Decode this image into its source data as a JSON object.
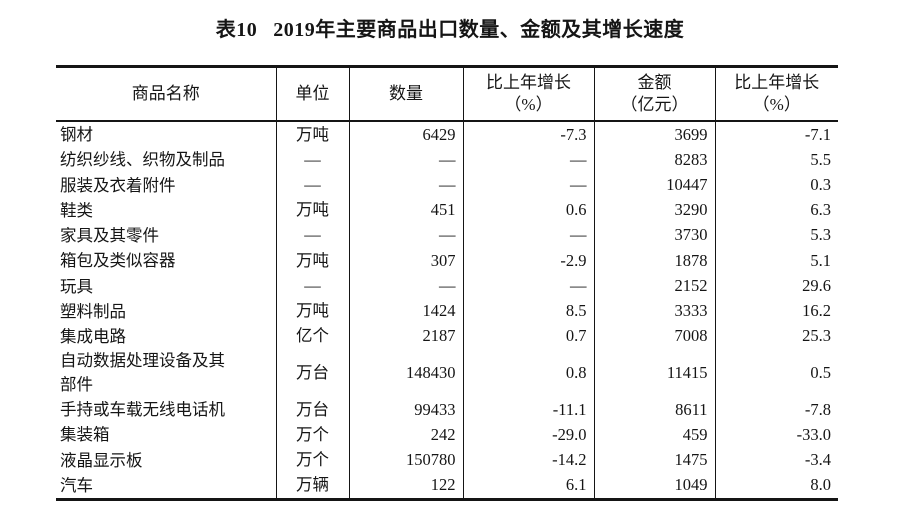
{
  "title": {
    "label": "表10",
    "text": "2019年主要商品出口数量、金额及其增长速度"
  },
  "table": {
    "headers": [
      "商品名称",
      "单位",
      "数量",
      "比上年增长\n（%）",
      "金额\n（亿元）",
      "比上年增长\n（%）"
    ],
    "rows": [
      {
        "name": "钢材",
        "unit": "万吨",
        "qty": "6429",
        "qtyGrowth": "-7.3",
        "amount": "3699",
        "amountGrowth": "-7.1"
      },
      {
        "name": "纺织纱线、织物及制品",
        "unit": "—",
        "qty": "—",
        "qtyGrowth": "—",
        "amount": "8283",
        "amountGrowth": "5.5"
      },
      {
        "name": "服装及衣着附件",
        "unit": "—",
        "qty": "—",
        "qtyGrowth": "—",
        "amount": "10447",
        "amountGrowth": "0.3"
      },
      {
        "name": "鞋类",
        "unit": "万吨",
        "qty": "451",
        "qtyGrowth": "0.6",
        "amount": "3290",
        "amountGrowth": "6.3"
      },
      {
        "name": "家具及其零件",
        "unit": "—",
        "qty": "—",
        "qtyGrowth": "—",
        "amount": "3730",
        "amountGrowth": "5.3"
      },
      {
        "name": "箱包及类似容器",
        "unit": "万吨",
        "qty": "307",
        "qtyGrowth": "-2.9",
        "amount": "1878",
        "amountGrowth": "5.1"
      },
      {
        "name": "玩具",
        "unit": "—",
        "qty": "—",
        "qtyGrowth": "—",
        "amount": "2152",
        "amountGrowth": "29.6"
      },
      {
        "name": "塑料制品",
        "unit": "万吨",
        "qty": "1424",
        "qtyGrowth": "8.5",
        "amount": "3333",
        "amountGrowth": "16.2"
      },
      {
        "name": "集成电路",
        "unit": "亿个",
        "qty": "2187",
        "qtyGrowth": "0.7",
        "amount": "7008",
        "amountGrowth": "25.3"
      },
      {
        "name": "自动数据处理设备及其部件",
        "unit": "万台",
        "qty": "148430",
        "qtyGrowth": "0.8",
        "amount": "11415",
        "amountGrowth": "0.5"
      },
      {
        "name": "手持或车载无线电话机",
        "unit": "万台",
        "qty": "99433",
        "qtyGrowth": "-11.1",
        "amount": "8611",
        "amountGrowth": "-7.8"
      },
      {
        "name": "集装箱",
        "unit": "万个",
        "qty": "242",
        "qtyGrowth": "-29.0",
        "amount": "459",
        "amountGrowth": "-33.0"
      },
      {
        "name": "液晶显示板",
        "unit": "万个",
        "qty": "150780",
        "qtyGrowth": "-14.2",
        "amount": "1475",
        "amountGrowth": "-3.4"
      },
      {
        "name": "汽车",
        "unit": "万辆",
        "qty": "122",
        "qtyGrowth": "6.1",
        "amount": "1049",
        "amountGrowth": "8.0"
      }
    ]
  }
}
